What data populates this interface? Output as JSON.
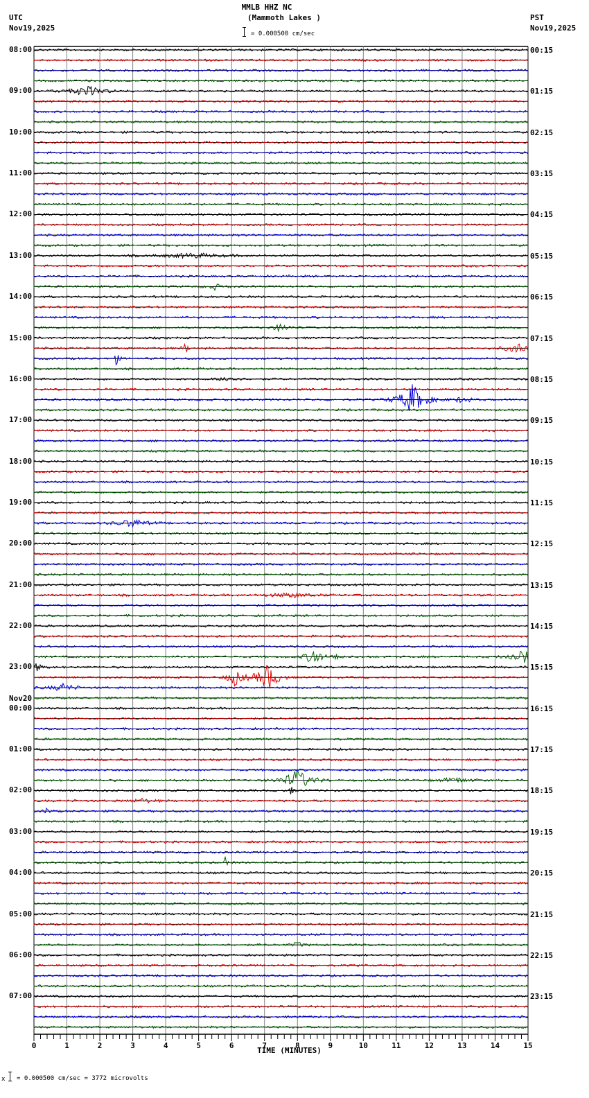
{
  "header": {
    "station": "MMLB HHZ NC",
    "location": "(Mammoth Lakes )",
    "scale_text": "= 0.000500 cm/sec",
    "left_tz": "UTC",
    "left_date": "Nov19,2025",
    "right_tz": "PST",
    "right_date": "Nov19,2025"
  },
  "footer": {
    "scale_text": "= 0.000500 cm/sec =    3772 microvolts",
    "prefix": "x"
  },
  "colors": {
    "trace_cycle": [
      "#000000",
      "#dd0000",
      "#0000dd",
      "#006400"
    ],
    "grid": "#808080",
    "frame": "#000000"
  },
  "chart_data": {
    "type": "line",
    "title": "MMLB HHZ NC (Mammoth Lakes )",
    "subtitle": "helicorder, 15 minutes per trace line, 0.000500 cm/sec scale",
    "xlabel": "TIME (MINUTES)",
    "ylabel": "",
    "x_ticks": [
      "0",
      "1",
      "2",
      "3",
      "4",
      "5",
      "6",
      "7",
      "8",
      "9",
      "10",
      "11",
      "12",
      "13",
      "14",
      "15"
    ],
    "xlim": [
      0,
      15
    ],
    "grid": true,
    "minutes_per_line": 15,
    "line_count": 96,
    "left_hour_labels": [
      {
        "line": 0,
        "label": "08:00"
      },
      {
        "line": 4,
        "label": "09:00"
      },
      {
        "line": 8,
        "label": "10:00"
      },
      {
        "line": 12,
        "label": "11:00"
      },
      {
        "line": 16,
        "label": "12:00"
      },
      {
        "line": 20,
        "label": "13:00"
      },
      {
        "line": 24,
        "label": "14:00"
      },
      {
        "line": 28,
        "label": "15:00"
      },
      {
        "line": 32,
        "label": "16:00"
      },
      {
        "line": 36,
        "label": "17:00"
      },
      {
        "line": 40,
        "label": "18:00"
      },
      {
        "line": 44,
        "label": "19:00"
      },
      {
        "line": 48,
        "label": "20:00"
      },
      {
        "line": 52,
        "label": "21:00"
      },
      {
        "line": 56,
        "label": "22:00"
      },
      {
        "line": 60,
        "label": "23:00"
      },
      {
        "line": 64,
        "label": "00:00",
        "date": "Nov20"
      },
      {
        "line": 68,
        "label": "01:00"
      },
      {
        "line": 72,
        "label": "02:00"
      },
      {
        "line": 76,
        "label": "03:00"
      },
      {
        "line": 80,
        "label": "04:00"
      },
      {
        "line": 84,
        "label": "05:00"
      },
      {
        "line": 88,
        "label": "06:00"
      },
      {
        "line": 92,
        "label": "07:00"
      }
    ],
    "right_hour_labels": [
      {
        "line": 0,
        "label": "00:15"
      },
      {
        "line": 4,
        "label": "01:15"
      },
      {
        "line": 8,
        "label": "02:15"
      },
      {
        "line": 12,
        "label": "03:15"
      },
      {
        "line": 16,
        "label": "04:15"
      },
      {
        "line": 20,
        "label": "05:15"
      },
      {
        "line": 24,
        "label": "06:15"
      },
      {
        "line": 28,
        "label": "07:15"
      },
      {
        "line": 32,
        "label": "08:15"
      },
      {
        "line": 36,
        "label": "09:15"
      },
      {
        "line": 40,
        "label": "10:15"
      },
      {
        "line": 44,
        "label": "11:15"
      },
      {
        "line": 48,
        "label": "12:15"
      },
      {
        "line": 52,
        "label": "13:15"
      },
      {
        "line": 56,
        "label": "14:15"
      },
      {
        "line": 60,
        "label": "15:15"
      },
      {
        "line": 64,
        "label": "16:15"
      },
      {
        "line": 68,
        "label": "17:15"
      },
      {
        "line": 72,
        "label": "18:15"
      },
      {
        "line": 76,
        "label": "19:15"
      },
      {
        "line": 80,
        "label": "20:15"
      },
      {
        "line": 84,
        "label": "21:15"
      },
      {
        "line": 88,
        "label": "22:15"
      },
      {
        "line": 92,
        "label": "23:15"
      }
    ],
    "events": [
      {
        "line": 4,
        "minute": 1.6,
        "width_min": 0.6,
        "amp": 7
      },
      {
        "line": 20,
        "minute": 4.8,
        "width_min": 1.2,
        "amp": 3
      },
      {
        "line": 23,
        "minute": 5.5,
        "width_min": 0.3,
        "amp": 4
      },
      {
        "line": 27,
        "minute": 7.5,
        "width_min": 0.3,
        "amp": 6
      },
      {
        "line": 29,
        "minute": 14.7,
        "width_min": 0.5,
        "amp": 7
      },
      {
        "line": 29,
        "minute": 4.6,
        "width_min": 0.1,
        "amp": 8
      },
      {
        "line": 30,
        "minute": 2.5,
        "width_min": 0.1,
        "amp": 9
      },
      {
        "line": 32,
        "minute": 5.9,
        "width_min": 0.3,
        "amp": 5
      },
      {
        "line": 34,
        "minute": 11.5,
        "width_min": 0.5,
        "amp": 22
      },
      {
        "line": 34,
        "minute": 13,
        "width_min": 0.3,
        "amp": 5
      },
      {
        "line": 46,
        "minute": 3.0,
        "width_min": 0.5,
        "amp": 6
      },
      {
        "line": 53,
        "minute": 7.8,
        "width_min": 0.8,
        "amp": 3
      },
      {
        "line": 59,
        "minute": 8.5,
        "width_min": 0.3,
        "amp": 13
      },
      {
        "line": 59,
        "minute": 14.8,
        "width_min": 0.4,
        "amp": 12
      },
      {
        "line": 59,
        "minute": 9.2,
        "width_min": 0.1,
        "amp": 10
      },
      {
        "line": 60,
        "minute": 0.1,
        "width_min": 0.2,
        "amp": 6
      },
      {
        "line": 61,
        "minute": 6.1,
        "width_min": 0.3,
        "amp": 12
      },
      {
        "line": 61,
        "minute": 7.1,
        "width_min": 0.4,
        "amp": 20
      },
      {
        "line": 62,
        "minute": 0.9,
        "width_min": 0.4,
        "amp": 6
      },
      {
        "line": 71,
        "minute": 8.0,
        "width_min": 0.5,
        "amp": 16
      },
      {
        "line": 71,
        "minute": 12.8,
        "width_min": 0.5,
        "amp": 4
      },
      {
        "line": 72,
        "minute": 7.8,
        "width_min": 0.1,
        "amp": 6
      },
      {
        "line": 73,
        "minute": 3.3,
        "width_min": 0.4,
        "amp": 3
      },
      {
        "line": 74,
        "minute": 0.4,
        "width_min": 0.1,
        "amp": 6
      },
      {
        "line": 79,
        "minute": 5.8,
        "width_min": 0.1,
        "amp": 7
      },
      {
        "line": 87,
        "minute": 8.0,
        "width_min": 0.2,
        "amp": 4
      }
    ]
  }
}
